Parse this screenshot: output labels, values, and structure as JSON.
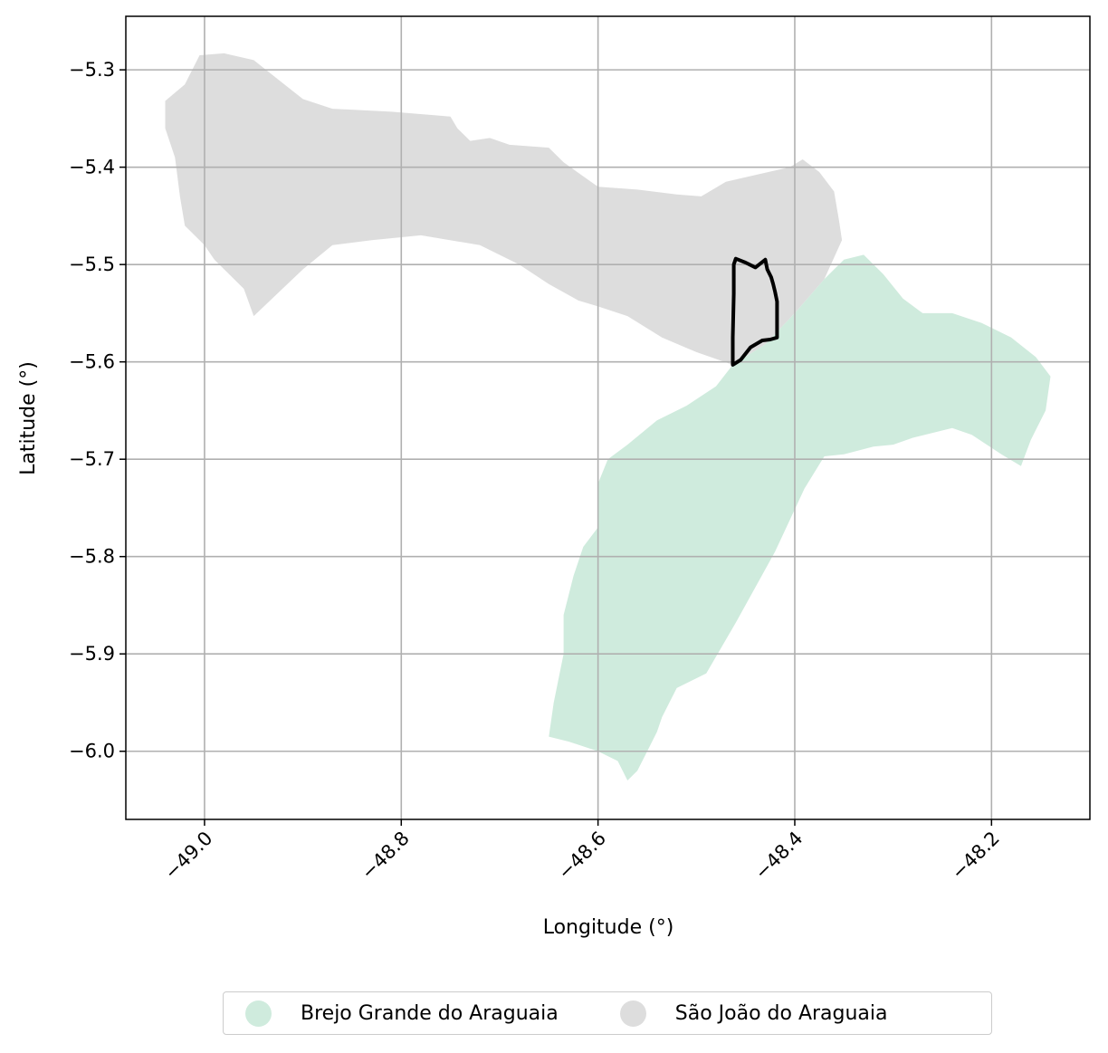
{
  "chart_data": {
    "type": "map",
    "title": "",
    "xlabel": "Longitude (°)",
    "ylabel": "Latitude (°)",
    "xlim": [
      -49.08,
      -48.1
    ],
    "ylim": [
      -6.07,
      -5.245
    ],
    "xticks": [
      -49.0,
      -48.8,
      -48.6,
      -48.4,
      -48.2
    ],
    "xtick_labels": [
      "−49.0",
      "−48.8",
      "−48.6",
      "−48.4",
      "−48.2"
    ],
    "yticks": [
      -5.3,
      -5.4,
      -5.5,
      -5.6,
      -5.7,
      -5.8,
      -5.9,
      -6.0
    ],
    "ytick_labels": [
      "−5.3",
      "−5.4",
      "−5.5",
      "−5.6",
      "−5.7",
      "−5.8",
      "−5.9",
      "−6.0"
    ],
    "grid": true,
    "legend_position": "bottom-center",
    "regions": [
      {
        "name": "São João do Araguaia",
        "color": "#dddddd",
        "polygon": [
          [
            -49.04,
            -5.332
          ],
          [
            -49.02,
            -5.315
          ],
          [
            -49.005,
            -5.285
          ],
          [
            -48.98,
            -5.283
          ],
          [
            -48.95,
            -5.29
          ],
          [
            -48.925,
            -5.31
          ],
          [
            -48.9,
            -5.33
          ],
          [
            -48.87,
            -5.34
          ],
          [
            -48.81,
            -5.343
          ],
          [
            -48.75,
            -5.348
          ],
          [
            -48.743,
            -5.36
          ],
          [
            -48.73,
            -5.373
          ],
          [
            -48.71,
            -5.37
          ],
          [
            -48.69,
            -5.377
          ],
          [
            -48.65,
            -5.38
          ],
          [
            -48.635,
            -5.395
          ],
          [
            -48.6,
            -5.42
          ],
          [
            -48.56,
            -5.423
          ],
          [
            -48.52,
            -5.428
          ],
          [
            -48.495,
            -5.43
          ],
          [
            -48.47,
            -5.415
          ],
          [
            -48.44,
            -5.408
          ],
          [
            -48.405,
            -5.4
          ],
          [
            -48.392,
            -5.392
          ],
          [
            -48.375,
            -5.405
          ],
          [
            -48.36,
            -5.425
          ],
          [
            -48.355,
            -5.455
          ],
          [
            -48.352,
            -5.475
          ],
          [
            -48.37,
            -5.515
          ],
          [
            -48.4,
            -5.55
          ],
          [
            -48.43,
            -5.582
          ],
          [
            -48.463,
            -5.603
          ],
          [
            -48.5,
            -5.59
          ],
          [
            -48.535,
            -5.575
          ],
          [
            -48.57,
            -5.553
          ],
          [
            -48.6,
            -5.543
          ],
          [
            -48.62,
            -5.537
          ],
          [
            -48.65,
            -5.52
          ],
          [
            -48.68,
            -5.5
          ],
          [
            -48.72,
            -5.48
          ],
          [
            -48.78,
            -5.47
          ],
          [
            -48.83,
            -5.475
          ],
          [
            -48.87,
            -5.48
          ],
          [
            -48.9,
            -5.505
          ],
          [
            -48.95,
            -5.553
          ],
          [
            -48.96,
            -5.525
          ],
          [
            -48.975,
            -5.51
          ],
          [
            -48.99,
            -5.495
          ],
          [
            -49.0,
            -5.48
          ],
          [
            -49.02,
            -5.46
          ],
          [
            -49.025,
            -5.43
          ],
          [
            -49.03,
            -5.39
          ],
          [
            -49.04,
            -5.36
          ],
          [
            -49.04,
            -5.332
          ]
        ]
      },
      {
        "name": "Brejo Grande do Araguaia",
        "color": "#cfebdd",
        "polygon": [
          [
            -48.33,
            -5.49
          ],
          [
            -48.31,
            -5.51
          ],
          [
            -48.29,
            -5.535
          ],
          [
            -48.27,
            -5.55
          ],
          [
            -48.24,
            -5.55
          ],
          [
            -48.21,
            -5.56
          ],
          [
            -48.18,
            -5.575
          ],
          [
            -48.155,
            -5.595
          ],
          [
            -48.14,
            -5.615
          ],
          [
            -48.145,
            -5.65
          ],
          [
            -48.16,
            -5.68
          ],
          [
            -48.17,
            -5.707
          ],
          [
            -48.19,
            -5.695
          ],
          [
            -48.22,
            -5.675
          ],
          [
            -48.24,
            -5.668
          ],
          [
            -48.28,
            -5.678
          ],
          [
            -48.3,
            -5.685
          ],
          [
            -48.32,
            -5.687
          ],
          [
            -48.35,
            -5.695
          ],
          [
            -48.37,
            -5.697
          ],
          [
            -48.39,
            -5.73
          ],
          [
            -48.42,
            -5.795
          ],
          [
            -48.46,
            -5.868
          ],
          [
            -48.49,
            -5.92
          ],
          [
            -48.52,
            -5.935
          ],
          [
            -48.535,
            -5.965
          ],
          [
            -48.54,
            -5.98
          ],
          [
            -48.55,
            -6.0
          ],
          [
            -48.56,
            -6.02
          ],
          [
            -48.57,
            -6.03
          ],
          [
            -48.58,
            -6.01
          ],
          [
            -48.6,
            -6.0
          ],
          [
            -48.63,
            -5.99
          ],
          [
            -48.65,
            -5.985
          ],
          [
            -48.645,
            -5.95
          ],
          [
            -48.635,
            -5.9
          ],
          [
            -48.635,
            -5.86
          ],
          [
            -48.625,
            -5.82
          ],
          [
            -48.615,
            -5.79
          ],
          [
            -48.6,
            -5.77
          ],
          [
            -48.6,
            -5.725
          ],
          [
            -48.59,
            -5.7
          ],
          [
            -48.57,
            -5.685
          ],
          [
            -48.54,
            -5.66
          ],
          [
            -48.51,
            -5.645
          ],
          [
            -48.48,
            -5.625
          ],
          [
            -48.463,
            -5.603
          ],
          [
            -48.43,
            -5.582
          ],
          [
            -48.4,
            -5.55
          ],
          [
            -48.37,
            -5.515
          ],
          [
            -48.35,
            -5.495
          ],
          [
            -48.33,
            -5.49
          ]
        ]
      }
    ],
    "highlight_outline": {
      "color": "#000000",
      "polygon": [
        [
          -48.46,
          -5.494
        ],
        [
          -48.45,
          -5.498
        ],
        [
          -48.44,
          -5.503
        ],
        [
          -48.43,
          -5.495
        ],
        [
          -48.428,
          -5.505
        ],
        [
          -48.424,
          -5.513
        ],
        [
          -48.422,
          -5.52
        ],
        [
          -48.42,
          -5.528
        ],
        [
          -48.418,
          -5.538
        ],
        [
          -48.418,
          -5.575
        ],
        [
          -48.425,
          -5.577
        ],
        [
          -48.433,
          -5.578
        ],
        [
          -48.445,
          -5.585
        ],
        [
          -48.455,
          -5.598
        ],
        [
          -48.463,
          -5.603
        ],
        [
          -48.463,
          -5.575
        ],
        [
          -48.462,
          -5.53
        ],
        [
          -48.462,
          -5.5
        ],
        [
          -48.46,
          -5.494
        ]
      ]
    }
  },
  "legend": {
    "items": [
      {
        "label": "Brejo Grande do Araguaia",
        "color": "#cfebdd"
      },
      {
        "label": "São João do Araguaia",
        "color": "#dddddd"
      }
    ]
  }
}
